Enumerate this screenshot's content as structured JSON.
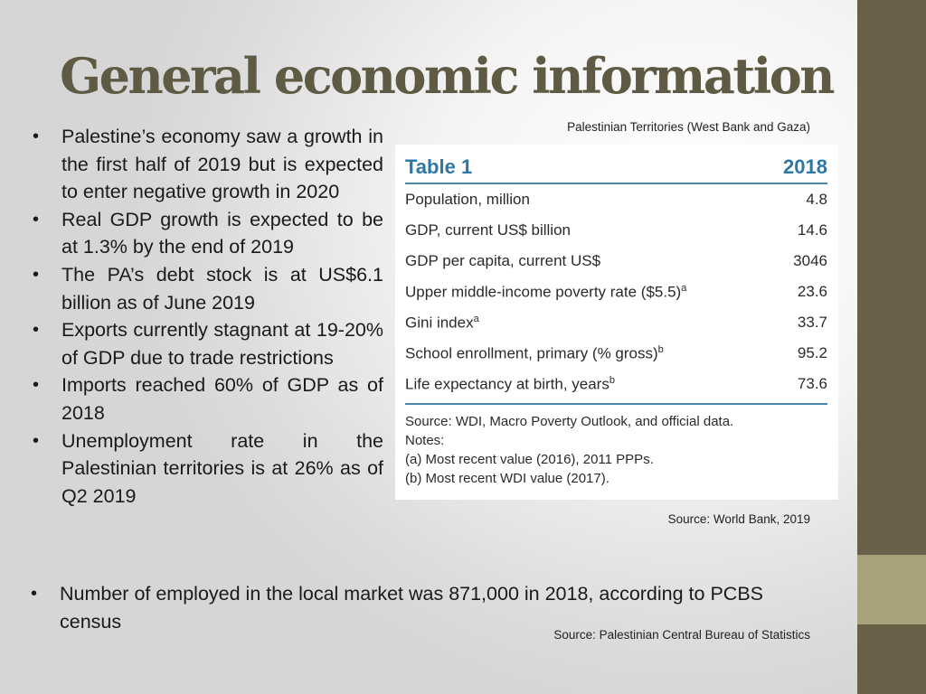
{
  "slide": {
    "title": "General economic information",
    "bullets": [
      "Palestine’s economy saw a growth in the first half of 2019 but is expected to enter negative growth in 2020",
      "Real GDP growth is expected to be at 1.3% by the end of 2019",
      "The PA’s debt stock is at US$6.1 billion as of June 2019",
      "Exports currently stagnant at 19-20% of GDP due to trade restrictions",
      "Imports reached 60% of GDP as of 2018",
      "Unemployment rate in the Palestinian territories is at 26% as of Q2 2019"
    ],
    "bottom_bullet": "Number of employed in the local market was 871,000 in 2018, according to PCBS census",
    "bullet_symbol": "•",
    "captions": {
      "table_caption": "Palestinian Territories (West Bank and Gaza)",
      "world_bank_source": "Source: World Bank, 2019",
      "pcbs_source": "Source: Palestinian Central Bureau of Statistics"
    }
  },
  "table": {
    "title": "Table 1",
    "year": "2018",
    "rows": [
      {
        "label": "Population, million",
        "sup": "",
        "value": "4.8"
      },
      {
        "label": "GDP, current US$ billion",
        "sup": "",
        "value": "14.6"
      },
      {
        "label": "GDP per capita, current US$",
        "sup": "",
        "value": "3046"
      },
      {
        "label": "Upper middle-income poverty rate ($5.5)",
        "sup": "a",
        "value": "23.6"
      },
      {
        "label": "Gini index",
        "sup": "a",
        "value": "33.7"
      },
      {
        "label": "School enrollment, primary (% gross)",
        "sup": "b",
        "value": "95.2"
      },
      {
        "label": "Life expectancy at birth, years",
        "sup": "b",
        "value": "73.6"
      }
    ],
    "notes": [
      "Source: WDI, Macro Poverty Outlook, and official data.",
      "Notes:",
      "(a) Most recent value (2016), 2011 PPPs.",
      "(b) Most recent WDI value (2017)."
    ]
  },
  "colors": {
    "title": "#5f5a44",
    "sidebar": "#6a5f48",
    "sidebar_accent": "#a7a27a",
    "table_accent": "#2e77a6"
  }
}
